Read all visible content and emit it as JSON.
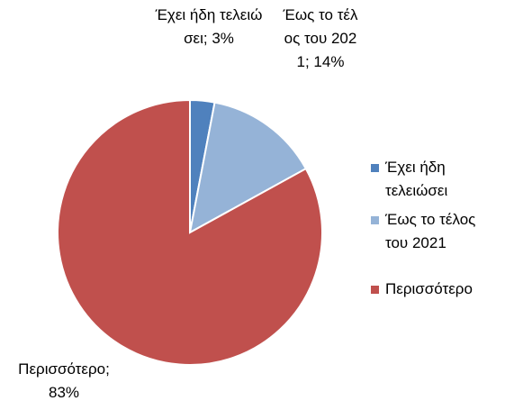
{
  "chart_data": {
    "type": "pie",
    "categories": [
      "Έχει ήδη τελειώσει",
      "Έως το τέλος του 2021",
      "Περισσότερο"
    ],
    "values": [
      3,
      14,
      83
    ],
    "value_labels": [
      "Έχει ήδη τελειώσει; 3%",
      "Έως το τέλος του 2021; 14%",
      "Περισσότερο; 83%"
    ],
    "colors": [
      "#4f81bd",
      "#95b3d7",
      "#c0504d"
    ],
    "legend": "right"
  }
}
